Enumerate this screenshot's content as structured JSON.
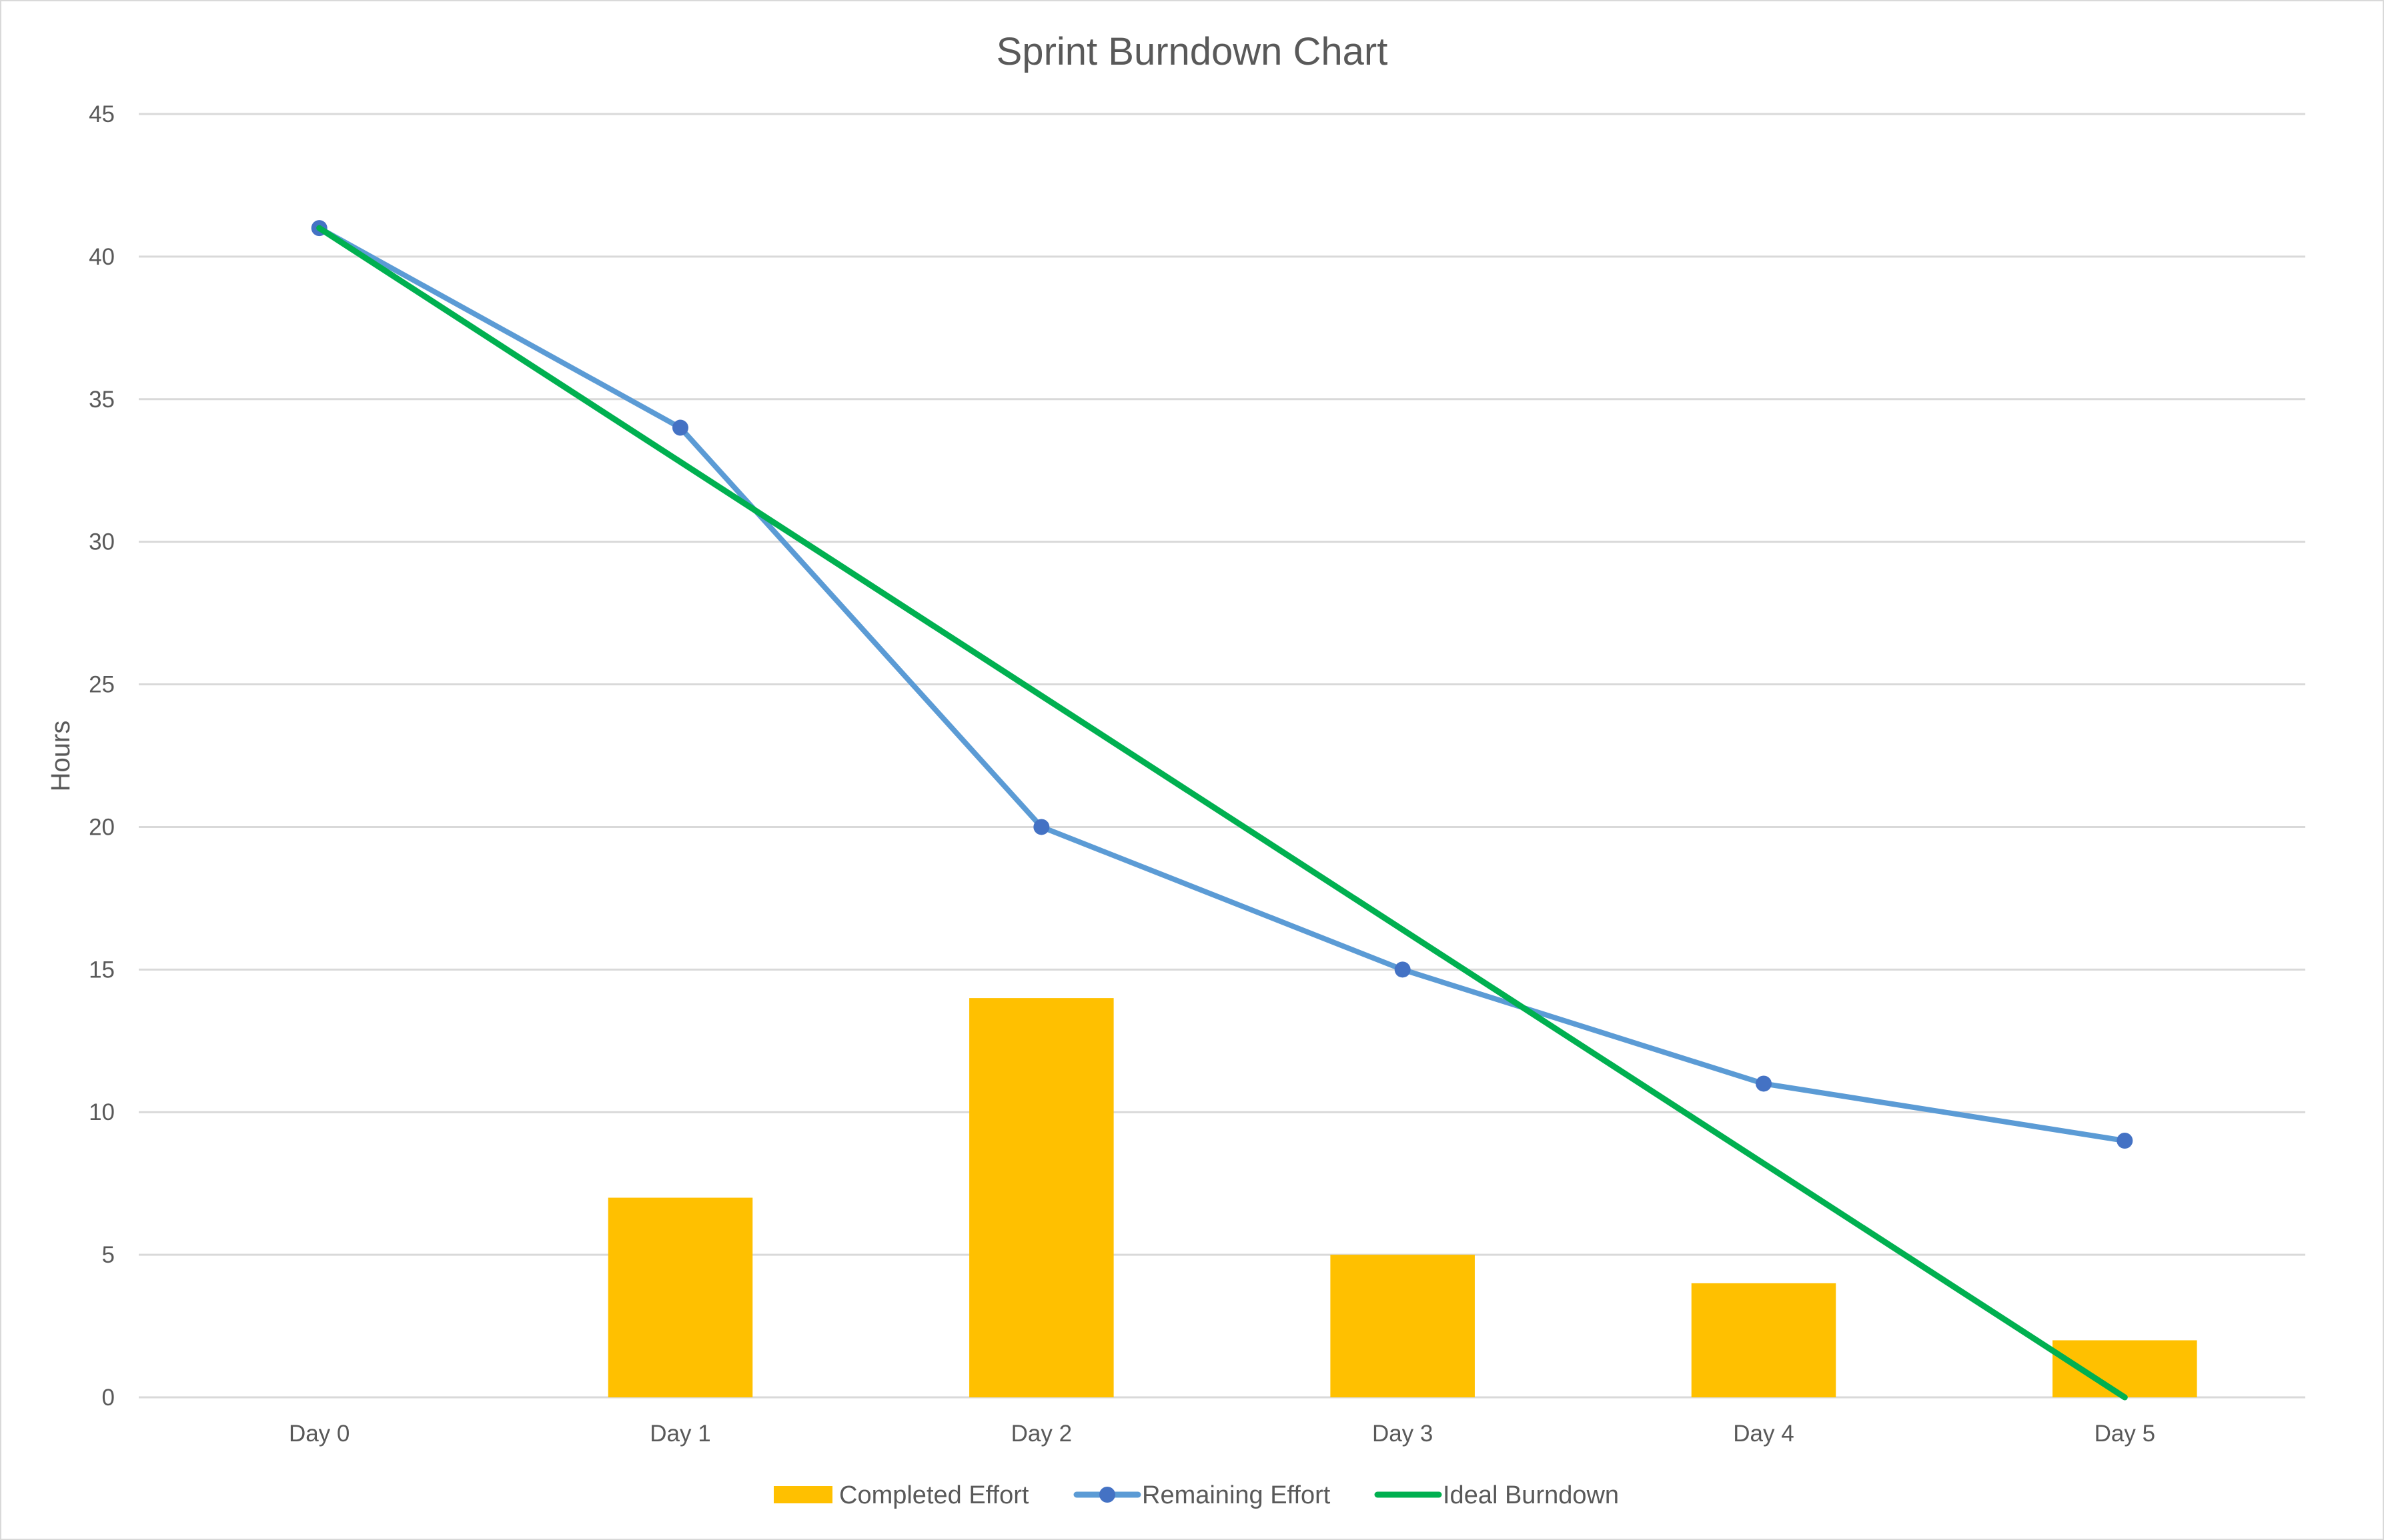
{
  "chart_data": {
    "type": "bar",
    "title": "Sprint Burndown Chart",
    "xlabel": "",
    "ylabel": "Hours",
    "categories": [
      "Day 0",
      "Day 1",
      "Day 2",
      "Day 3",
      "Day 4",
      "Day 5"
    ],
    "ylim": [
      0,
      45
    ],
    "yticks": [
      0,
      5,
      10,
      15,
      20,
      25,
      30,
      35,
      40,
      45
    ],
    "grid": true,
    "legend_position": "bottom",
    "series": [
      {
        "name": "Completed Effort",
        "type": "bar",
        "color": "#FFC000",
        "values": [
          0,
          7,
          14,
          5,
          4,
          2
        ]
      },
      {
        "name": "Remaining Effort",
        "type": "line",
        "marker": "circle",
        "color": "#5B9BD5",
        "marker_color": "#4472C4",
        "values": [
          41,
          34,
          20,
          15,
          11,
          9
        ]
      },
      {
        "name": "Ideal Burndown",
        "type": "line",
        "marker": "none",
        "color": "#00B050",
        "values": [
          41,
          32.8,
          24.6,
          16.4,
          8.2,
          0
        ]
      }
    ]
  }
}
